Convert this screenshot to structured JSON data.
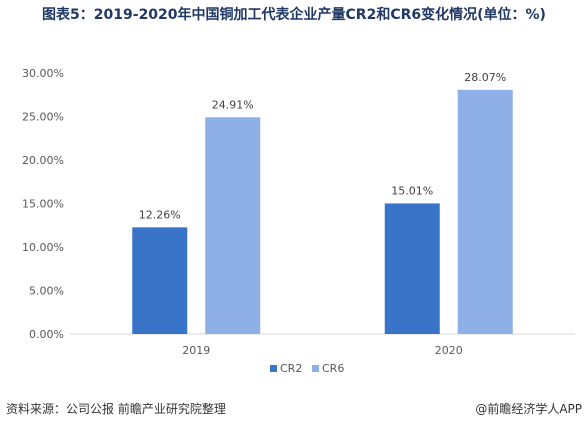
{
  "title": "图表5：2019-2020年中国铜加工代表企业产量CR2和CR6变化情况(单位：%)",
  "source": "资料来源：公司公报 前瞻产业研究院整理",
  "credit": "@前瞻经济学人APP",
  "chart_data": {
    "type": "bar",
    "categories": [
      "2019",
      "2020"
    ],
    "series": [
      {
        "name": "CR2",
        "values": [
          12.26,
          15.01
        ],
        "labels": [
          "12.26%",
          "15.01%"
        ],
        "color": "#3a74c9"
      },
      {
        "name": "CR6",
        "values": [
          24.91,
          28.07
        ],
        "labels": [
          "24.91%",
          "28.07%"
        ],
        "color": "#8fb0e6"
      }
    ],
    "ylim": [
      0,
      30
    ],
    "yticks": [
      "0.00%",
      "5.00%",
      "10.00%",
      "15.00%",
      "20.00%",
      "25.00%",
      "30.00%"
    ],
    "ytick_values": [
      0,
      5,
      10,
      15,
      20,
      25,
      30
    ],
    "grid": false,
    "legend_position": "bottom-center",
    "xlabel": "",
    "ylabel": ""
  }
}
